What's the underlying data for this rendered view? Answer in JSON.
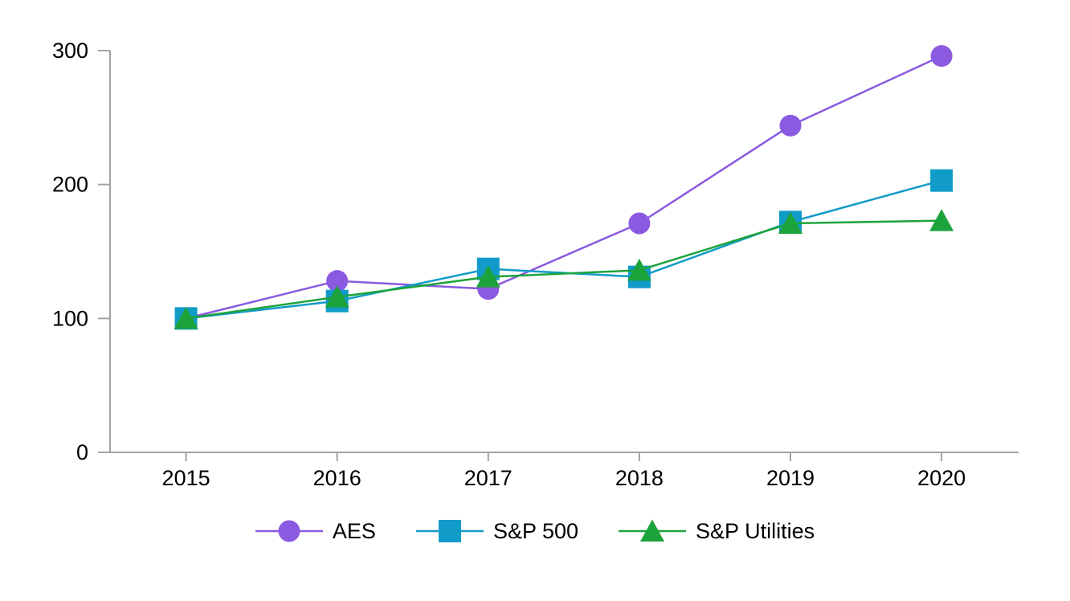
{
  "chart_data": {
    "type": "line",
    "title": "",
    "xlabel": "",
    "ylabel": "",
    "categories": [
      "2015",
      "2016",
      "2017",
      "2018",
      "2019",
      "2020"
    ],
    "series": [
      {
        "name": "AES",
        "marker": "circle",
        "color": "#8a5ae0",
        "values": [
          100,
          128,
          122,
          171,
          244,
          296
        ]
      },
      {
        "name": "S&P 500",
        "marker": "square",
        "color": "#119bc8",
        "values": [
          100,
          113,
          137,
          131,
          172,
          203
        ]
      },
      {
        "name": "S&P Utilities",
        "marker": "triangle",
        "color": "#1da33c",
        "values": [
          100,
          116,
          131,
          136,
          171,
          173
        ]
      }
    ],
    "ylim": [
      0,
      300
    ],
    "yticks": [
      0,
      100,
      200,
      300
    ],
    "grid": false,
    "legend_position": "bottom",
    "axis_color": "#a3a3a3",
    "text_color": "#000000",
    "background_color": "#ffffff"
  }
}
